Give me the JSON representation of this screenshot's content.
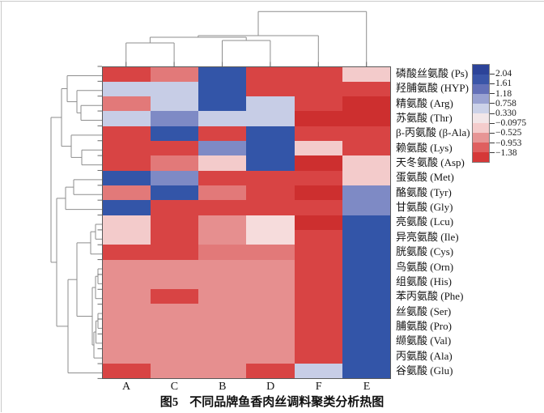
{
  "chart_data": {
    "type": "heatmap",
    "title": "图5 不同品牌鱼香肉丝调料聚类分析热图",
    "caption_prefix": "图5",
    "caption_text": "不同品牌鱼香肉丝调料聚类分析热图",
    "columns": [
      "A",
      "C",
      "B",
      "D",
      "F",
      "E"
    ],
    "rows": [
      "磷酸丝氨酸 (Ps)",
      "羟脯氨酸 (HYP)",
      "精氨酸 (Arg)",
      "苏氨酸 (Thr)",
      "β-丙氨酸 (β-Ala)",
      "赖氨酸 (Lys)",
      "天冬氨酸 (Asp)",
      "蛋氨酸 (Met)",
      "酪氨酸 (Tyr)",
      "甘氨酸 (Gly)",
      "亮氨酸 (Lcu)",
      "异亮氨酸 (Ile)",
      "胱氨酸 (Cys)",
      "鸟氨酸 (Orn)",
      "组氨酸 (His)",
      "苯丙氨酸 (Phe)",
      "丝氨酸 (Ser)",
      "脯氨酸 (Pro)",
      "缬氨酸 (Val)",
      "丙氨酸 (Ala)",
      "谷氨酸 (Glu)"
    ],
    "legend_ticks": [
      "2.04",
      "1.61",
      "1.18",
      "0.758",
      "0.330",
      "−0.0975",
      "−0.525",
      "−0.953",
      "−1.38"
    ],
    "legend_band_colors": [
      "#2c4399",
      "#3a55a8",
      "#6370b8",
      "#9aa3d2",
      "#ccd2e8",
      "#f2e6e8",
      "#f4cccc",
      "#e79595",
      "#df5f5f",
      "#d53838"
    ],
    "palette": {
      "dkblue": "#3355a8",
      "medblue": "#7e8ac5",
      "lav": "#c7cde6",
      "vltpink": "#f6dcdc",
      "ltpink": "#f3cbcb",
      "salmon": "#e27979",
      "salmon2": "#e68f8f",
      "red": "#d84444",
      "dkred": "#cd2f2f"
    },
    "palette_value_estimates": {
      "dkblue": 2.0,
      "medblue": 0.9,
      "lav": 0.55,
      "vltpink": 0.2,
      "ltpink": -0.05,
      "salmon": -0.65,
      "salmon2": -0.55,
      "red": -1.0,
      "dkred": -1.38
    },
    "cells": [
      [
        "red",
        "salmon",
        "dkblue",
        "red",
        "red",
        "ltpink"
      ],
      [
        "lav",
        "lav",
        "dkblue",
        "red",
        "red",
        "red"
      ],
      [
        "salmon",
        "lav",
        "dkblue",
        "lav",
        "red",
        "dkred"
      ],
      [
        "lav",
        "medblue",
        "lav",
        "lav",
        "dkred",
        "dkred"
      ],
      [
        "red",
        "dkblue",
        "red",
        "dkblue",
        "red",
        "red"
      ],
      [
        "red",
        "red",
        "medblue",
        "dkblue",
        "ltpink",
        "red"
      ],
      [
        "red",
        "salmon",
        "ltpink",
        "dkblue",
        "dkred",
        "ltpink"
      ],
      [
        "dkblue",
        "medblue",
        "red",
        "red",
        "red",
        "ltpink"
      ],
      [
        "salmon",
        "dkblue",
        "salmon",
        "red",
        "dkred",
        "medblue"
      ],
      [
        "dkblue",
        "red",
        "red",
        "red",
        "red",
        "medblue"
      ],
      [
        "ltpink",
        "red",
        "salmon2",
        "vltpink",
        "dkred",
        "dkblue"
      ],
      [
        "ltpink",
        "red",
        "salmon2",
        "vltpink",
        "red",
        "dkblue"
      ],
      [
        "red",
        "red",
        "salmon",
        "salmon",
        "red",
        "dkblue"
      ],
      [
        "salmon2",
        "salmon2",
        "salmon2",
        "salmon2",
        "red",
        "dkblue"
      ],
      [
        "salmon2",
        "salmon2",
        "salmon2",
        "salmon2",
        "red",
        "dkblue"
      ],
      [
        "salmon2",
        "red",
        "salmon2",
        "salmon2",
        "red",
        "dkblue"
      ],
      [
        "salmon2",
        "salmon2",
        "salmon2",
        "salmon2",
        "red",
        "dkblue"
      ],
      [
        "salmon2",
        "salmon2",
        "salmon2",
        "salmon2",
        "red",
        "dkblue"
      ],
      [
        "salmon2",
        "salmon2",
        "salmon2",
        "salmon2",
        "red",
        "dkblue"
      ],
      [
        "salmon2",
        "salmon2",
        "salmon2",
        "salmon2",
        "red",
        "dkblue"
      ],
      [
        "red",
        "salmon2",
        "salmon2",
        "red",
        "lav",
        "dkblue"
      ]
    ],
    "col_dendrogram_segments": [
      [
        155.7,
        82,
        155.7,
        53
      ],
      [
        215.1,
        82,
        215.1,
        53
      ],
      [
        155.7,
        53,
        215.1,
        53
      ],
      [
        274.5,
        82,
        274.5,
        50
      ],
      [
        333.9,
        82,
        333.9,
        50
      ],
      [
        274.5,
        50,
        333.9,
        50
      ],
      [
        185.4,
        53,
        185.4,
        46
      ],
      [
        304.2,
        50,
        304.2,
        46
      ],
      [
        185.4,
        46,
        304.2,
        46
      ],
      [
        244.8,
        46,
        244.8,
        44
      ],
      [
        393.3,
        82,
        393.3,
        44
      ],
      [
        244.8,
        44,
        393.3,
        44
      ],
      [
        319.0,
        44,
        319.0,
        14.3
      ],
      [
        452.7,
        82,
        452.7,
        14.3
      ],
      [
        319.0,
        14.3,
        452.7,
        14.3
      ]
    ],
    "row_dendrogram_segments": [
      [
        126,
        93.5,
        83,
        93.5
      ],
      [
        126,
        111.8,
        95,
        111.8
      ],
      [
        126,
        130.2,
        100,
        130.2
      ],
      [
        126,
        148.5,
        100,
        148.5
      ],
      [
        126,
        166.9,
        88,
        166.9
      ],
      [
        126,
        185.2,
        101,
        185.2
      ],
      [
        126,
        203.6,
        101,
        203.6
      ],
      [
        126,
        221.9,
        91,
        221.9
      ],
      [
        126,
        240.3,
        91,
        240.3
      ],
      [
        126,
        258.6,
        81,
        258.6
      ],
      [
        126,
        277,
        118,
        277
      ],
      [
        126,
        295.3,
        118,
        295.3
      ],
      [
        126,
        313.7,
        112,
        313.7
      ],
      [
        126,
        332,
        121,
        332
      ],
      [
        126,
        350.4,
        121,
        350.4
      ],
      [
        126,
        368.7,
        118,
        368.7
      ],
      [
        126,
        387.1,
        121,
        387.1
      ],
      [
        126,
        405.4,
        121,
        405.4
      ],
      [
        126,
        423.8,
        118.5,
        423.8
      ],
      [
        126,
        442.1,
        116,
        442.1
      ],
      [
        126,
        460.5,
        84,
        460.5
      ],
      [
        100,
        130.2,
        100,
        148.5
      ],
      [
        100,
        139.35,
        95,
        139.35
      ],
      [
        95,
        111.8,
        95,
        139.35
      ],
      [
        95,
        125.6,
        83,
        125.6
      ],
      [
        83,
        93.5,
        83,
        125.6
      ],
      [
        83,
        109.5,
        76,
        109.5
      ],
      [
        101,
        185.2,
        101,
        203.6
      ],
      [
        101,
        194.4,
        88,
        194.4
      ],
      [
        88,
        166.9,
        88,
        194.4
      ],
      [
        88,
        180.6,
        76,
        180.6
      ],
      [
        76,
        109.5,
        76,
        180.6
      ],
      [
        76,
        145,
        63,
        145
      ],
      [
        91,
        221.9,
        91,
        240.3
      ],
      [
        91,
        231.1,
        81,
        231.1
      ],
      [
        81,
        231.1,
        81,
        258.6
      ],
      [
        81,
        244.9,
        70,
        244.9
      ],
      [
        118,
        277,
        118,
        295.3
      ],
      [
        118,
        286.15,
        112,
        286.15
      ],
      [
        112,
        286.15,
        112,
        313.7
      ],
      [
        112,
        299.9,
        95,
        299.9
      ],
      [
        121,
        332,
        121,
        350.4
      ],
      [
        121,
        341.2,
        118,
        341.2
      ],
      [
        118,
        341.2,
        118,
        368.7
      ],
      [
        118,
        355,
        114,
        355
      ],
      [
        121,
        387.1,
        121,
        405.4
      ],
      [
        121,
        396.25,
        118.5,
        396.25
      ],
      [
        118.5,
        396.25,
        118.5,
        423.8
      ],
      [
        118.5,
        410,
        116,
        410
      ],
      [
        116,
        410,
        116,
        442.1
      ],
      [
        116,
        426,
        114,
        426
      ],
      [
        114,
        355,
        114,
        426
      ],
      [
        114,
        390.5,
        95,
        390.5
      ],
      [
        95,
        299.9,
        95,
        390.5
      ],
      [
        95,
        345.2,
        84,
        345.2
      ],
      [
        84,
        345.2,
        84,
        460.5
      ],
      [
        84,
        402.9,
        70,
        402.9
      ],
      [
        70,
        244.9,
        70,
        402.9
      ],
      [
        70,
        323.9,
        63,
        323.9
      ],
      [
        63,
        145,
        63,
        323.9
      ]
    ]
  }
}
